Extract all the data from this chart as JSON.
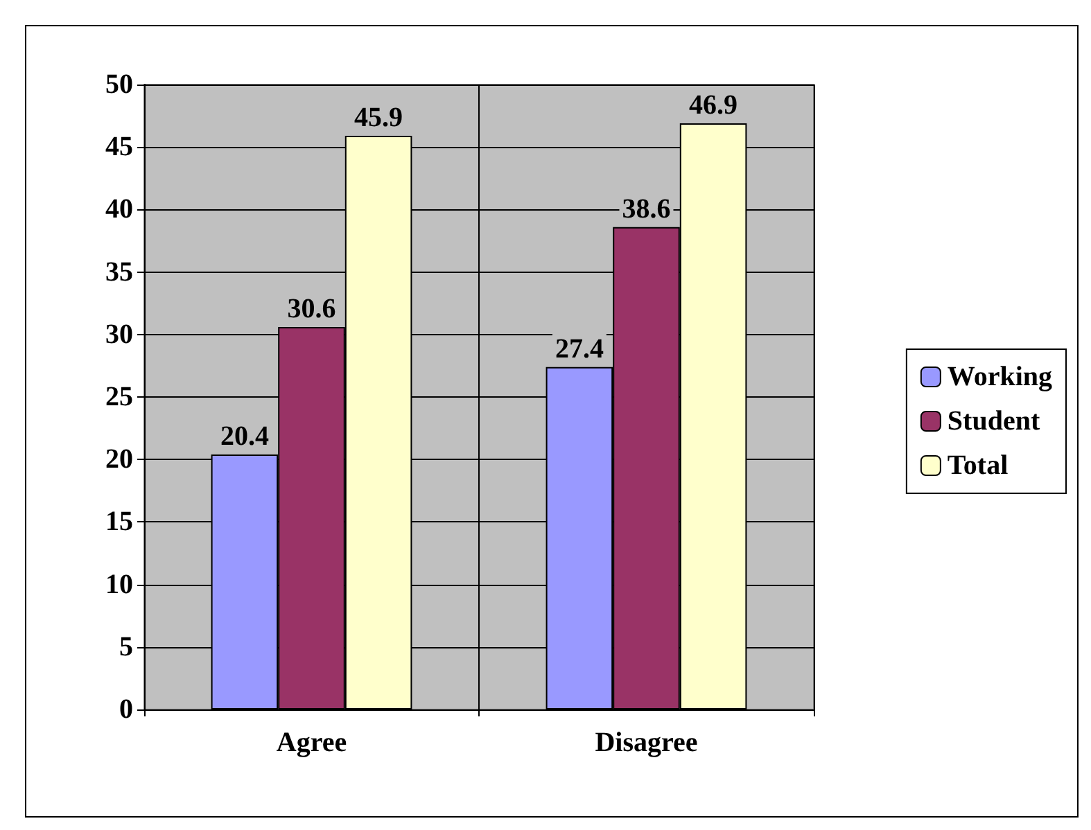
{
  "chart_data": {
    "type": "bar",
    "categories": [
      "Agree",
      "Disagree"
    ],
    "series": [
      {
        "name": "Working",
        "color": "#9999ff",
        "values": [
          20.4,
          27.4
        ]
      },
      {
        "name": "Student",
        "color": "#993366",
        "values": [
          30.6,
          38.6
        ]
      },
      {
        "name": "Total",
        "color": "#ffffcc",
        "values": [
          45.9,
          46.9
        ]
      }
    ],
    "ylim": [
      0,
      50
    ],
    "yticks": [
      0,
      5,
      10,
      15,
      20,
      25,
      30,
      35,
      40,
      45,
      50
    ],
    "grid": true,
    "legend": "right",
    "data_labels": true
  }
}
